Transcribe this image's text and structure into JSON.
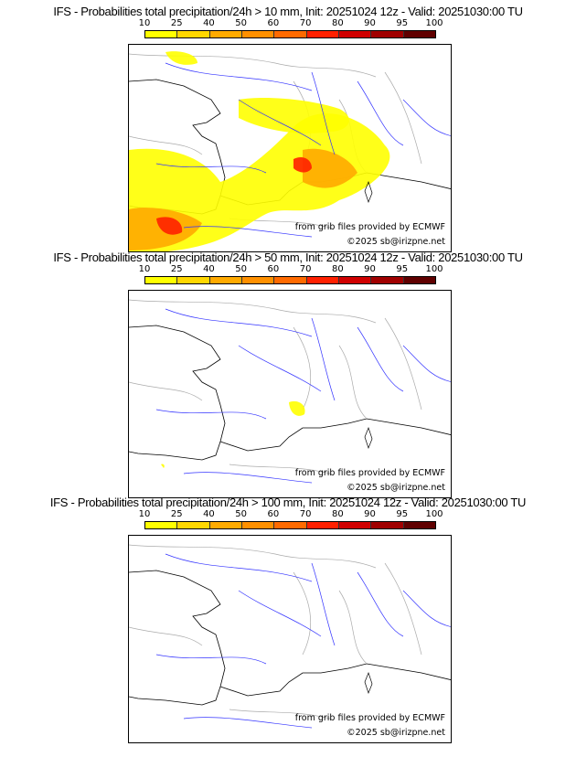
{
  "panels": [
    {
      "title": "IFS - Probabilities total precipitation/24h > 10 mm, Init: 20251024 12z - Valid: 20251030:00 TU"
    },
    {
      "title": "IFS - Probabilities total precipitation/24h > 50 mm, Init: 20251024 12z - Valid: 20251030:00 TU"
    },
    {
      "title": "IFS - Probabilities total precipitation/24h > 100 mm, Init: 20251024 12z - Valid: 20251030:00 TU"
    }
  ],
  "colorbar": {
    "ticks": [
      "10",
      "25",
      "40",
      "50",
      "60",
      "70",
      "80",
      "90",
      "95",
      "100"
    ],
    "colors": [
      "#ffff00",
      "#ffd700",
      "#ffaa00",
      "#ff9000",
      "#ff6a00",
      "#ff2000",
      "#d00000",
      "#a00000",
      "#600000"
    ]
  },
  "credits": {
    "source": "from grib files provided by ECMWF",
    "copyright": "©2025 sb@irizpne.net"
  }
}
